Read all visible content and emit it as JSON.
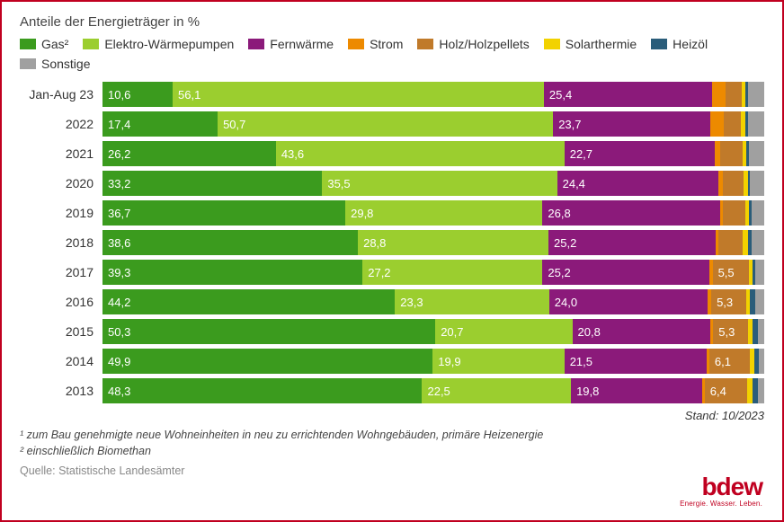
{
  "title": "Anteile der Energieträger in %",
  "series": [
    {
      "key": "gas",
      "label": "Gas²",
      "color": "#3b9b1e"
    },
    {
      "key": "wp",
      "label": "Elektro-Wärmepumpen",
      "color": "#9bce2f"
    },
    {
      "key": "fw",
      "label": "Fernwärme",
      "color": "#8b1a7a"
    },
    {
      "key": "strom",
      "label": "Strom",
      "color": "#ed8a00"
    },
    {
      "key": "holz",
      "label": "Holz/Holzpellets",
      "color": "#c07a2a"
    },
    {
      "key": "solar",
      "label": "Solarthermie",
      "color": "#f2d200"
    },
    {
      "key": "oel",
      "label": "Heizöl",
      "color": "#2a5d7a"
    },
    {
      "key": "sonst",
      "label": "Sonstige",
      "color": "#a0a0a0"
    }
  ],
  "label_threshold": 5.0,
  "rows": [
    {
      "label": "Jan-Aug 23",
      "values": {
        "gas": 10.6,
        "wp": 56.1,
        "fw": 25.4,
        "strom": 2.0,
        "holz": 2.5,
        "solar": 0.6,
        "oel": 0.4,
        "sonst": 2.4
      }
    },
    {
      "label": "2022",
      "values": {
        "gas": 17.4,
        "wp": 50.7,
        "fw": 23.7,
        "strom": 2.1,
        "holz": 2.6,
        "solar": 0.7,
        "oel": 0.4,
        "sonst": 2.4
      }
    },
    {
      "label": "2021",
      "values": {
        "gas": 26.2,
        "wp": 43.6,
        "fw": 22.7,
        "strom": 0.8,
        "holz": 3.4,
        "solar": 0.6,
        "oel": 0.4,
        "sonst": 2.3
      }
    },
    {
      "label": "2020",
      "values": {
        "gas": 33.2,
        "wp": 35.5,
        "fw": 24.4,
        "strom": 0.6,
        "holz": 3.2,
        "solar": 0.6,
        "oel": 0.4,
        "sonst": 2.1
      }
    },
    {
      "label": "2019",
      "values": {
        "gas": 36.7,
        "wp": 29.8,
        "fw": 26.8,
        "strom": 0.5,
        "holz": 3.3,
        "solar": 0.6,
        "oel": 0.4,
        "sonst": 1.9
      }
    },
    {
      "label": "2018",
      "values": {
        "gas": 38.6,
        "wp": 28.8,
        "fw": 25.2,
        "strom": 0.5,
        "holz": 3.7,
        "solar": 0.8,
        "oel": 0.5,
        "sonst": 1.9
      }
    },
    {
      "label": "2017",
      "values": {
        "gas": 39.3,
        "wp": 27.2,
        "fw": 25.2,
        "strom": 0.5,
        "holz": 5.5,
        "solar": 0.6,
        "oel": 0.4,
        "sonst": 1.3
      }
    },
    {
      "label": "2016",
      "values": {
        "gas": 44.2,
        "wp": 23.3,
        "fw": 24.0,
        "strom": 0.5,
        "holz": 5.3,
        "solar": 0.6,
        "oel": 0.7,
        "sonst": 1.4
      }
    },
    {
      "label": "2015",
      "values": {
        "gas": 50.3,
        "wp": 20.7,
        "fw": 20.8,
        "strom": 0.5,
        "holz": 5.3,
        "solar": 0.7,
        "oel": 0.7,
        "sonst": 1.0
      }
    },
    {
      "label": "2014",
      "values": {
        "gas": 49.9,
        "wp": 19.9,
        "fw": 21.5,
        "strom": 0.4,
        "holz": 6.1,
        "solar": 0.7,
        "oel": 0.7,
        "sonst": 0.8
      }
    },
    {
      "label": "2013",
      "values": {
        "gas": 48.3,
        "wp": 22.5,
        "fw": 19.8,
        "strom": 0.4,
        "holz": 6.4,
        "solar": 0.8,
        "oel": 0.9,
        "sonst": 0.9
      }
    }
  ],
  "stand": "Stand: 10/2023",
  "footnote1": "¹ zum Bau genehmigte neue Wohneinheiten in neu zu errichtenden Wohngebäuden, primäre Heizenergie",
  "footnote2": "² einschließlich Biomethan",
  "source": "Quelle: Statistische Landesämter",
  "logo_main": "bdew",
  "logo_sub": "Energie. Wasser. Leben.",
  "number_format": {
    "decimal_sep": ","
  }
}
